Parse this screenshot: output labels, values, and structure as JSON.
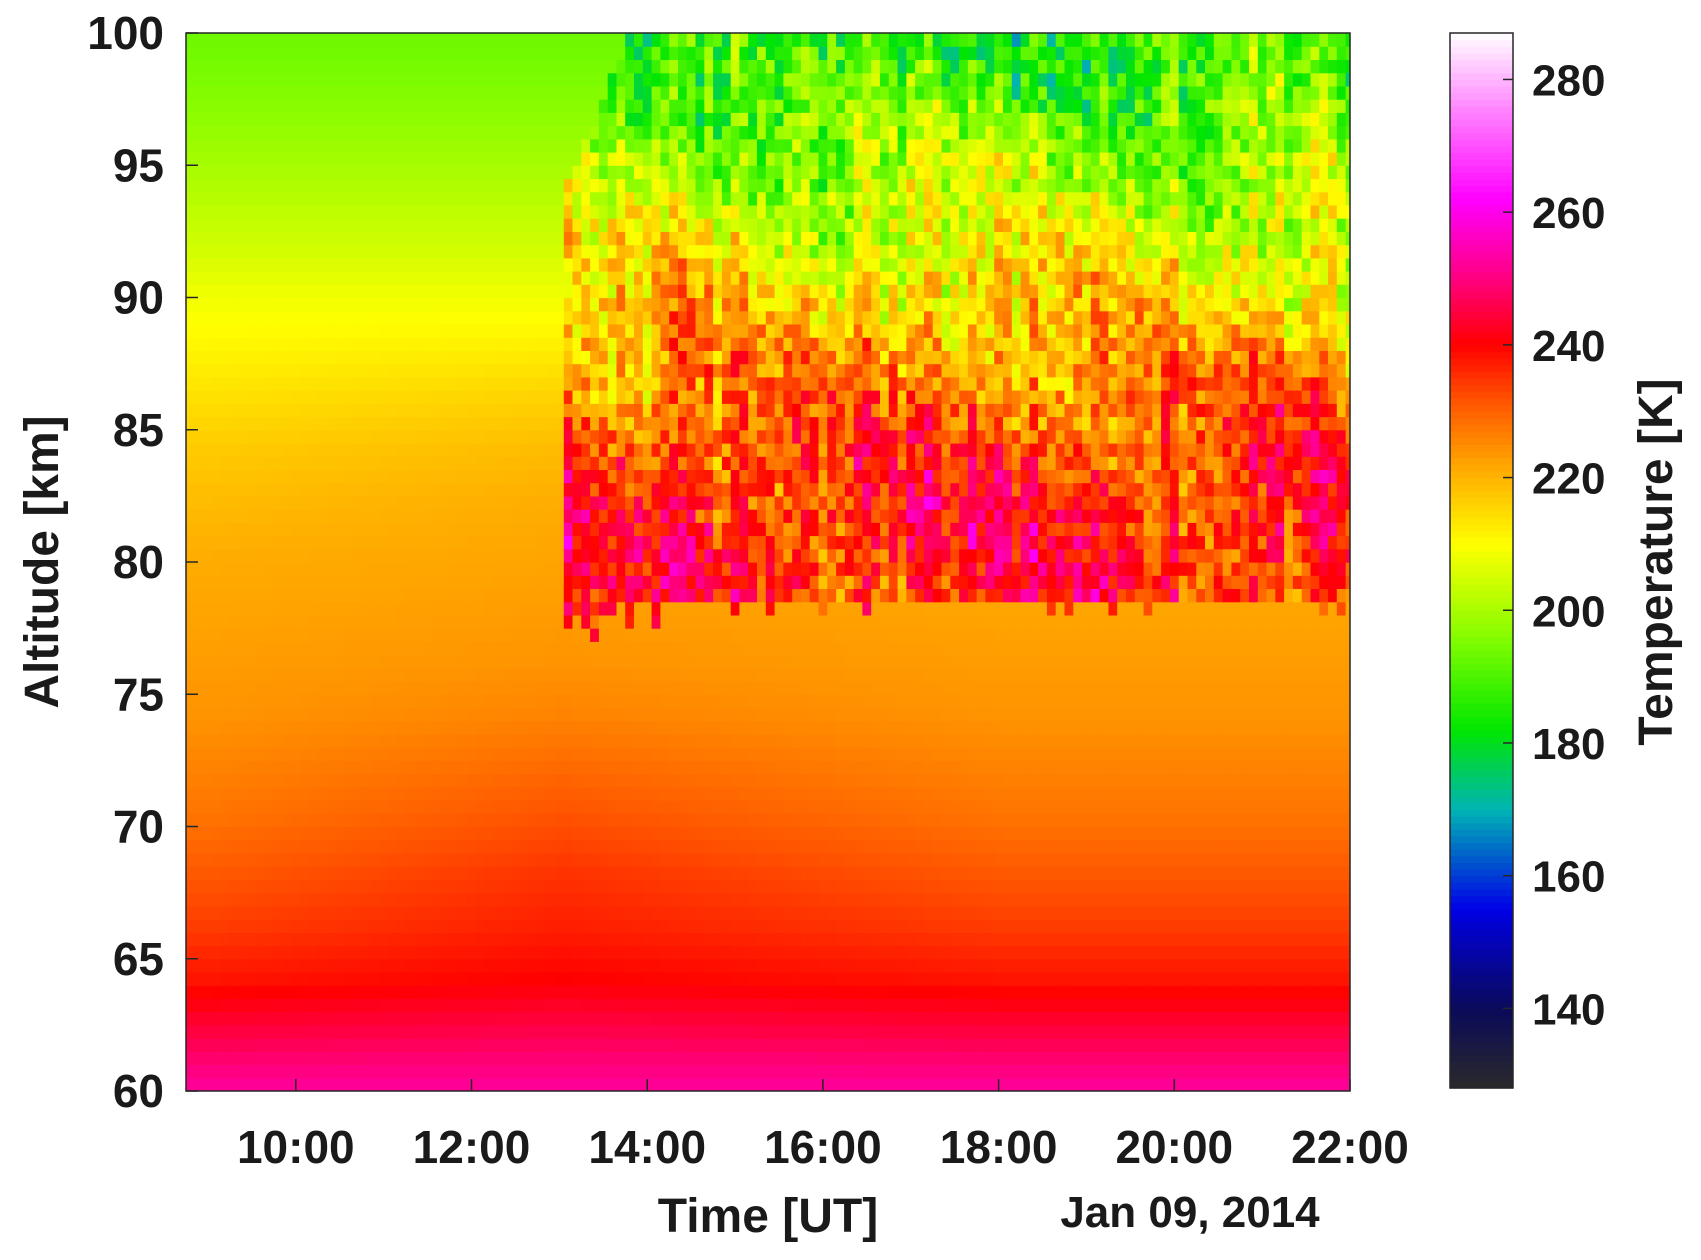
{
  "chart_data": {
    "type": "heatmap",
    "xlabel": "Time [UT]",
    "date_label": "Jan 09, 2014",
    "ylabel": "Altitude [km]",
    "colorbar_label": "Temperature [K]",
    "xlim": [
      "08:45",
      "22:00"
    ],
    "x_ticks": [
      "10:00",
      "12:00",
      "14:00",
      "16:00",
      "18:00",
      "20:00",
      "22:00"
    ],
    "ylim": [
      60,
      100
    ],
    "y_ticks": [
      "60",
      "65",
      "70",
      "75",
      "80",
      "85",
      "90",
      "95",
      "100"
    ],
    "clim": [
      128,
      287
    ],
    "colorbar_ticks": [
      "140",
      "160",
      "180",
      "200",
      "220",
      "240",
      "260",
      "280"
    ],
    "colormap": [
      {
        "value": 128,
        "color": "#2a2a2a"
      },
      {
        "value": 140,
        "color": "#0a0a5a"
      },
      {
        "value": 155,
        "color": "#0000e6"
      },
      {
        "value": 170,
        "color": "#00b4b4"
      },
      {
        "value": 182,
        "color": "#00e600"
      },
      {
        "value": 195,
        "color": "#7cfc00"
      },
      {
        "value": 210,
        "color": "#ffff00"
      },
      {
        "value": 222,
        "color": "#ffa500"
      },
      {
        "value": 232,
        "color": "#ff5000"
      },
      {
        "value": 240,
        "color": "#ff0000"
      },
      {
        "value": 250,
        "color": "#ff0080"
      },
      {
        "value": 262,
        "color": "#ff00ff"
      },
      {
        "value": 275,
        "color": "#ff80ff"
      },
      {
        "value": 287,
        "color": "#ffffff"
      }
    ],
    "model_background_K": {
      "altitude_km": [
        60,
        62,
        64,
        66,
        68,
        70,
        72,
        74,
        76,
        78,
        80,
        82,
        84,
        86,
        88,
        90,
        92,
        94,
        96,
        98,
        100
      ],
      "at_09h_K": [
        252,
        245,
        238,
        234,
        231,
        228,
        226,
        224,
        223,
        222,
        221,
        219,
        217,
        214,
        211,
        208,
        204,
        201,
        198,
        195,
        193
      ],
      "at_13h_K": [
        252,
        246,
        240,
        237,
        235,
        232,
        229,
        226,
        224,
        223,
        222,
        221,
        219,
        216,
        212,
        208,
        204,
        201,
        198,
        195,
        193
      ],
      "at_18h_K": [
        252,
        245,
        238,
        234,
        231,
        228,
        226,
        224,
        223,
        222,
        221,
        219,
        217,
        214,
        211,
        208,
        204,
        201,
        198,
        195,
        193
      ]
    },
    "lidar_coverage": {
      "time_start": "13:00",
      "time_end": "22:00",
      "altitude_bottom_km": 78.5,
      "altitude_top_km": 100
    },
    "lidar_mean_profile_K": {
      "altitude_km": [
        78,
        80,
        82,
        84,
        86,
        88,
        90,
        92,
        94,
        96,
        98,
        100
      ],
      "temperature_K": [
        238,
        240,
        238,
        234,
        228,
        222,
        214,
        208,
        202,
        196,
        190,
        185
      ]
    }
  }
}
